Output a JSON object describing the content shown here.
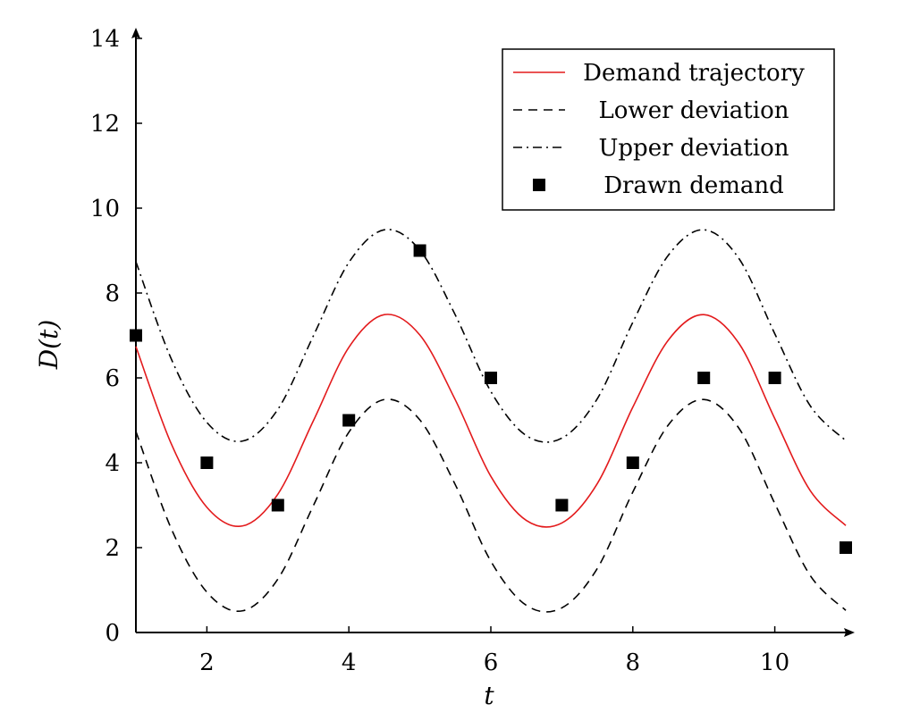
{
  "chart_data": {
    "type": "line",
    "title": "",
    "xlabel": "t",
    "ylabel": "D(t)",
    "xlim": [
      1,
      11
    ],
    "ylim": [
      0,
      14
    ],
    "xticks": [
      2,
      4,
      6,
      8,
      10
    ],
    "yticks": [
      0,
      2,
      4,
      6,
      8,
      10,
      12,
      14
    ],
    "grid": false,
    "legend_position": "top-right",
    "x": [
      1,
      1.5,
      2,
      2.5,
      3,
      3.5,
      4,
      4.5,
      5,
      5.5,
      6,
      6.5,
      7,
      7.5,
      8,
      8.5,
      9,
      9.5,
      10,
      10.5,
      11
    ],
    "series": [
      {
        "name": "Demand trajectory",
        "style": "solid",
        "color": "#e31a1c",
        "values": [
          6.74,
          4.44,
          2.95,
          2.51,
          3.26,
          4.99,
          6.72,
          7.49,
          7.01,
          5.48,
          3.68,
          2.64,
          2.58,
          3.51,
          5.31,
          6.89,
          7.49,
          6.8,
          5.04,
          3.34,
          2.52
        ]
      },
      {
        "name": "Lower deviation",
        "style": "dashed",
        "color": "#000000",
        "values": [
          4.74,
          2.44,
          0.95,
          0.51,
          1.26,
          2.99,
          4.72,
          5.49,
          5.01,
          3.48,
          1.68,
          0.64,
          0.58,
          1.51,
          3.31,
          4.89,
          5.49,
          4.8,
          3.04,
          1.34,
          0.52
        ]
      },
      {
        "name": "Upper deviation",
        "style": "dashdot",
        "color": "#000000",
        "values": [
          8.74,
          6.44,
          4.95,
          4.51,
          5.26,
          6.99,
          8.72,
          9.49,
          9.01,
          7.48,
          5.68,
          4.64,
          4.58,
          5.51,
          7.31,
          8.89,
          9.49,
          8.8,
          7.04,
          5.34,
          4.52
        ]
      }
    ],
    "points": {
      "name": "Drawn demand",
      "marker": "square",
      "color": "#000000",
      "x": [
        1,
        2,
        3,
        4,
        5,
        6,
        7,
        8,
        9,
        10,
        11
      ],
      "y": [
        7,
        4,
        3,
        5,
        9,
        6,
        3,
        4,
        6,
        6,
        2
      ]
    }
  }
}
